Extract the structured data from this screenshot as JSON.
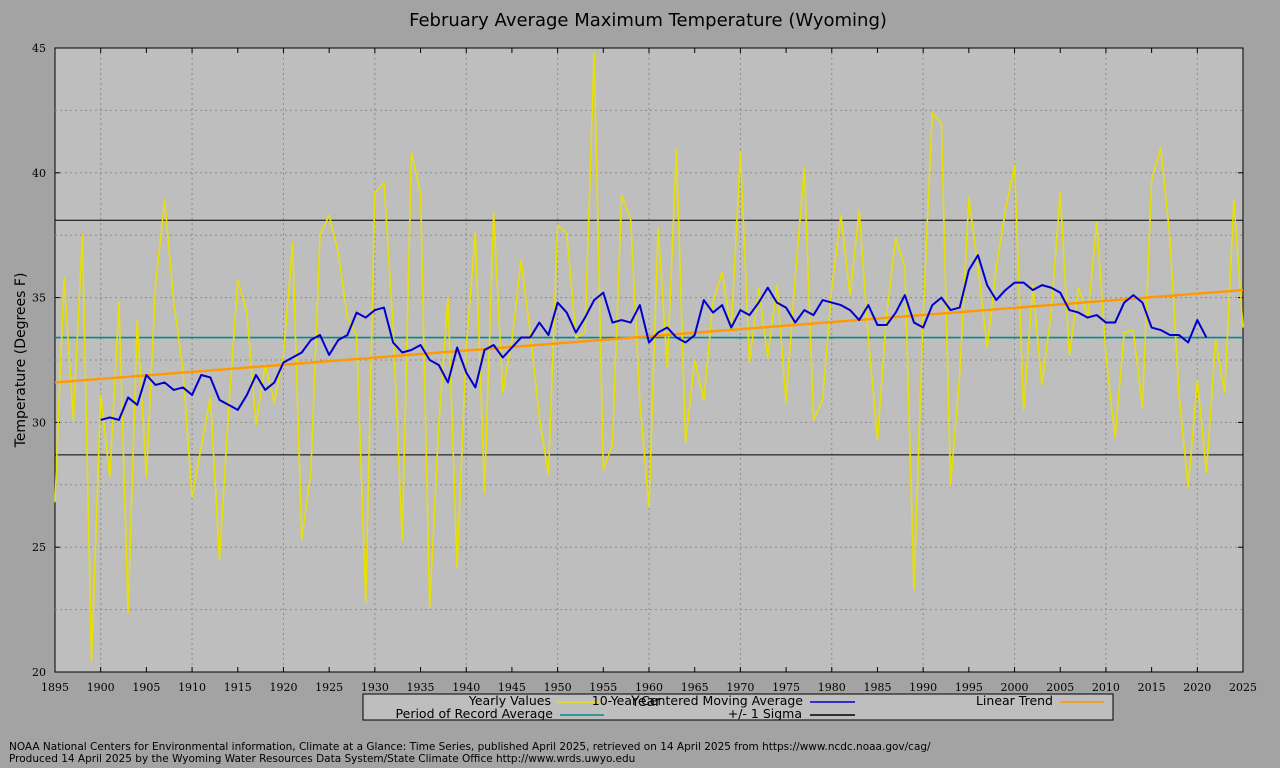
{
  "chart_data": {
    "type": "line",
    "title": "February Average Maximum Temperature (Wyoming)",
    "xlabel": "Year",
    "ylabel": "Temperature (Degrees F)",
    "xlim": [
      1895,
      2025
    ],
    "ylim": [
      20,
      45
    ],
    "x_ticks": [
      1895,
      1900,
      1905,
      1910,
      1915,
      1920,
      1925,
      1930,
      1935,
      1940,
      1945,
      1950,
      1955,
      1960,
      1965,
      1970,
      1975,
      1980,
      1985,
      1990,
      1995,
      2000,
      2005,
      2010,
      2015,
      2020,
      2025
    ],
    "y_ticks": [
      20,
      25,
      30,
      35,
      40,
      45
    ],
    "grid": true,
    "legend": [
      {
        "label": "Yearly Values",
        "color": "#e8e000"
      },
      {
        "label": "10-Year Centered Moving Average",
        "color": "#0000cc"
      },
      {
        "label": "Linear Trend",
        "color": "#ff9900"
      },
      {
        "label": "Period of Record Average",
        "color": "#008b8b"
      },
      {
        "label": "+/- 1 Sigma",
        "color": "#000000"
      }
    ],
    "period_of_record_average": 33.4,
    "sigma_upper": 38.1,
    "sigma_lower": 28.7,
    "trend": {
      "start": [
        1895,
        31.6
      ],
      "end": [
        2025,
        35.3
      ]
    },
    "series": [
      {
        "name": "Yearly Values",
        "color": "#e8e000",
        "x": [
          1895,
          1896,
          1897,
          1898,
          1899,
          1900,
          1901,
          1902,
          1903,
          1904,
          1905,
          1906,
          1907,
          1908,
          1909,
          1910,
          1911,
          1912,
          1913,
          1914,
          1915,
          1916,
          1917,
          1918,
          1919,
          1920,
          1921,
          1922,
          1923,
          1924,
          1925,
          1926,
          1927,
          1928,
          1929,
          1930,
          1931,
          1932,
          1933,
          1934,
          1935,
          1936,
          1937,
          1938,
          1939,
          1940,
          1941,
          1942,
          1943,
          1944,
          1945,
          1946,
          1947,
          1948,
          1949,
          1950,
          1951,
          1952,
          1953,
          1954,
          1955,
          1956,
          1957,
          1958,
          1959,
          1960,
          1961,
          1962,
          1963,
          1964,
          1965,
          1966,
          1967,
          1968,
          1969,
          1970,
          1971,
          1972,
          1973,
          1974,
          1975,
          1976,
          1977,
          1978,
          1979,
          1980,
          1981,
          1982,
          1983,
          1984,
          1985,
          1986,
          1987,
          1988,
          1989,
          1990,
          1991,
          1992,
          1993,
          1994,
          1995,
          1996,
          1997,
          1998,
          1999,
          2000,
          2001,
          2002,
          2003,
          2004,
          2005,
          2006,
          2007,
          2008,
          2009,
          2010,
          2011,
          2012,
          2013,
          2014,
          2015,
          2016,
          2017,
          2018,
          2019,
          2020,
          2021,
          2022,
          2023,
          2024,
          2025
        ],
        "values": [
          26.8,
          35.8,
          30.1,
          37.5,
          20.4,
          31.1,
          27.8,
          34.8,
          22.4,
          34.1,
          27.8,
          35.5,
          38.9,
          34.8,
          32.1,
          27.0,
          29.0,
          31.0,
          24.5,
          30.5,
          35.7,
          34.4,
          29.9,
          32.3,
          30.8,
          32.7,
          37.2,
          25.3,
          28.0,
          37.5,
          38.3,
          36.8,
          34.2,
          33.5,
          22.8,
          39.2,
          39.6,
          33.8,
          25.3,
          40.8,
          39.2,
          22.6,
          29.9,
          35.0,
          24.2,
          33.0,
          37.6,
          27.2,
          38.4,
          31.2,
          33.3,
          36.5,
          33.6,
          30.2,
          27.9,
          37.9,
          37.6,
          33.4,
          33.6,
          44.8,
          28.1,
          29.1,
          39.1,
          38.1,
          30.8,
          26.6,
          37.8,
          32.2,
          40.9,
          29.2,
          32.5,
          30.9,
          34.8,
          36.0,
          33.7,
          40.8,
          32.4,
          35.4,
          32.6,
          35.5,
          30.8,
          35.8,
          40.2,
          30.1,
          30.9,
          35.4,
          38.3,
          35.1,
          38.5,
          33.4,
          29.3,
          34.3,
          37.4,
          36.2,
          23.3,
          34.3,
          42.4,
          42.0,
          27.5,
          31.9,
          39.0,
          36.2,
          33.0,
          36.2,
          38.5,
          40.3,
          30.5,
          35.5,
          31.5,
          34.4,
          39.2,
          32.7,
          35.4,
          34.2,
          38.0,
          32.7,
          29.4,
          33.6,
          33.7,
          30.6,
          39.7,
          41.0,
          37.4,
          31.1,
          27.4,
          31.7,
          28.0,
          33.3,
          31.2,
          38.9,
          33.8
        ]
      },
      {
        "name": "10-Year Centered Moving Average",
        "color": "#0000cc",
        "x": [
          1900,
          1901,
          1902,
          1903,
          1904,
          1905,
          1906,
          1907,
          1908,
          1909,
          1910,
          1911,
          1912,
          1913,
          1914,
          1915,
          1916,
          1917,
          1918,
          1919,
          1920,
          1921,
          1922,
          1923,
          1924,
          1925,
          1926,
          1927,
          1928,
          1929,
          1930,
          1931,
          1932,
          1933,
          1934,
          1935,
          1936,
          1937,
          1938,
          1939,
          1940,
          1941,
          1942,
          1943,
          1944,
          1945,
          1946,
          1947,
          1948,
          1949,
          1950,
          1951,
          1952,
          1953,
          1954,
          1955,
          1956,
          1957,
          1958,
          1959,
          1960,
          1961,
          1962,
          1963,
          1964,
          1965,
          1966,
          1967,
          1968,
          1969,
          1970,
          1971,
          1972,
          1973,
          1974,
          1975,
          1976,
          1977,
          1978,
          1979,
          1980,
          1981,
          1982,
          1983,
          1984,
          1985,
          1986,
          1987,
          1988,
          1989,
          1990,
          1991,
          1992,
          1993,
          1994,
          1995,
          1996,
          1997,
          1998,
          1999,
          2000,
          2001,
          2002,
          2003,
          2004,
          2005,
          2006,
          2007,
          2008,
          2009,
          2010,
          2011,
          2012,
          2013,
          2014,
          2015,
          2016,
          2017,
          2018,
          2019,
          2020,
          2021
        ],
        "values": [
          30.1,
          30.2,
          30.1,
          31.0,
          30.7,
          31.9,
          31.5,
          31.6,
          31.3,
          31.4,
          31.1,
          31.9,
          31.8,
          30.9,
          30.7,
          30.5,
          31.1,
          31.9,
          31.3,
          31.6,
          32.4,
          32.6,
          32.8,
          33.3,
          33.5,
          32.7,
          33.3,
          33.5,
          34.4,
          34.2,
          34.5,
          34.6,
          33.2,
          32.8,
          32.9,
          33.1,
          32.5,
          32.3,
          31.6,
          33.0,
          32.0,
          31.4,
          32.9,
          33.1,
          32.6,
          33.0,
          33.4,
          33.4,
          34.0,
          33.5,
          34.8,
          34.4,
          33.6,
          34.2,
          34.9,
          35.2,
          34.0,
          34.1,
          34.0,
          34.7,
          33.2,
          33.6,
          33.8,
          33.4,
          33.2,
          33.5,
          34.9,
          34.4,
          34.7,
          33.8,
          34.5,
          34.3,
          34.8,
          35.4,
          34.8,
          34.6,
          34.0,
          34.5,
          34.3,
          34.9,
          34.8,
          34.7,
          34.5,
          34.1,
          34.7,
          33.9,
          33.9,
          34.4,
          35.1,
          34.0,
          33.8,
          34.7,
          35.0,
          34.5,
          34.6,
          36.1,
          36.7,
          35.5,
          34.9,
          35.3,
          35.6,
          35.6,
          35.3,
          35.5,
          35.4,
          35.2,
          34.5,
          34.4,
          34.2,
          34.3,
          34.0,
          34.0,
          34.8,
          35.1,
          34.8,
          33.8,
          33.7,
          33.5,
          33.5,
          33.2,
          34.1,
          33.4
        ]
      }
    ]
  },
  "credits": {
    "line1": "NOAA National Centers for Environmental information, Climate at a Glance: Time Series, published April 2025, retrieved on 14 April 2025 from https://www.ncdc.noaa.gov/cag/",
    "line2": "Produced 14 April 2025 by the Wyoming Water Resources Data System/State Climate Office http://www.wrds.uwyo.edu"
  }
}
